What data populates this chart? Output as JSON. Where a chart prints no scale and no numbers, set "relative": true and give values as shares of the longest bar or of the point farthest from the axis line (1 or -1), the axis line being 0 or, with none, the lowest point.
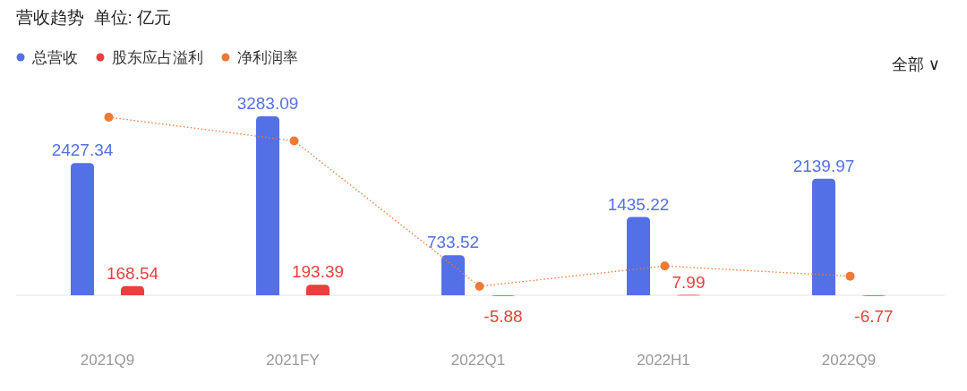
{
  "chart_data": [
    {
      "type": "bar",
      "title": "营收趋势  单位: 亿元",
      "categories": [
        "2021Q9",
        "2021FY",
        "2022Q1",
        "2022H1",
        "2022Q9"
      ],
      "series": [
        {
          "name": "总营收",
          "color": "#5470e6",
          "values": [
            2427.34,
            3283.09,
            733.52,
            1435.22,
            2139.97
          ]
        },
        {
          "name": "股东应占溢利",
          "color": "#e8403d",
          "values": [
            168.54,
            193.39,
            -5.88,
            7.99,
            -6.77
          ]
        }
      ],
      "data_labels": true,
      "legend": "top left",
      "annotations": [
        "全部 ∨"
      ]
    },
    {
      "type": "line",
      "relative": true,
      "categories": [
        null,
        null,
        null,
        null,
        null
      ],
      "series": [
        {
          "name": "净利润率",
          "color": "#ef7a35",
          "values": [
            1,
            0.86,
            0,
            0.12,
            0.06
          ]
        }
      ],
      "legend": "top left",
      "marker": "circle",
      "line_style": "dotted"
    }
  ]
}
